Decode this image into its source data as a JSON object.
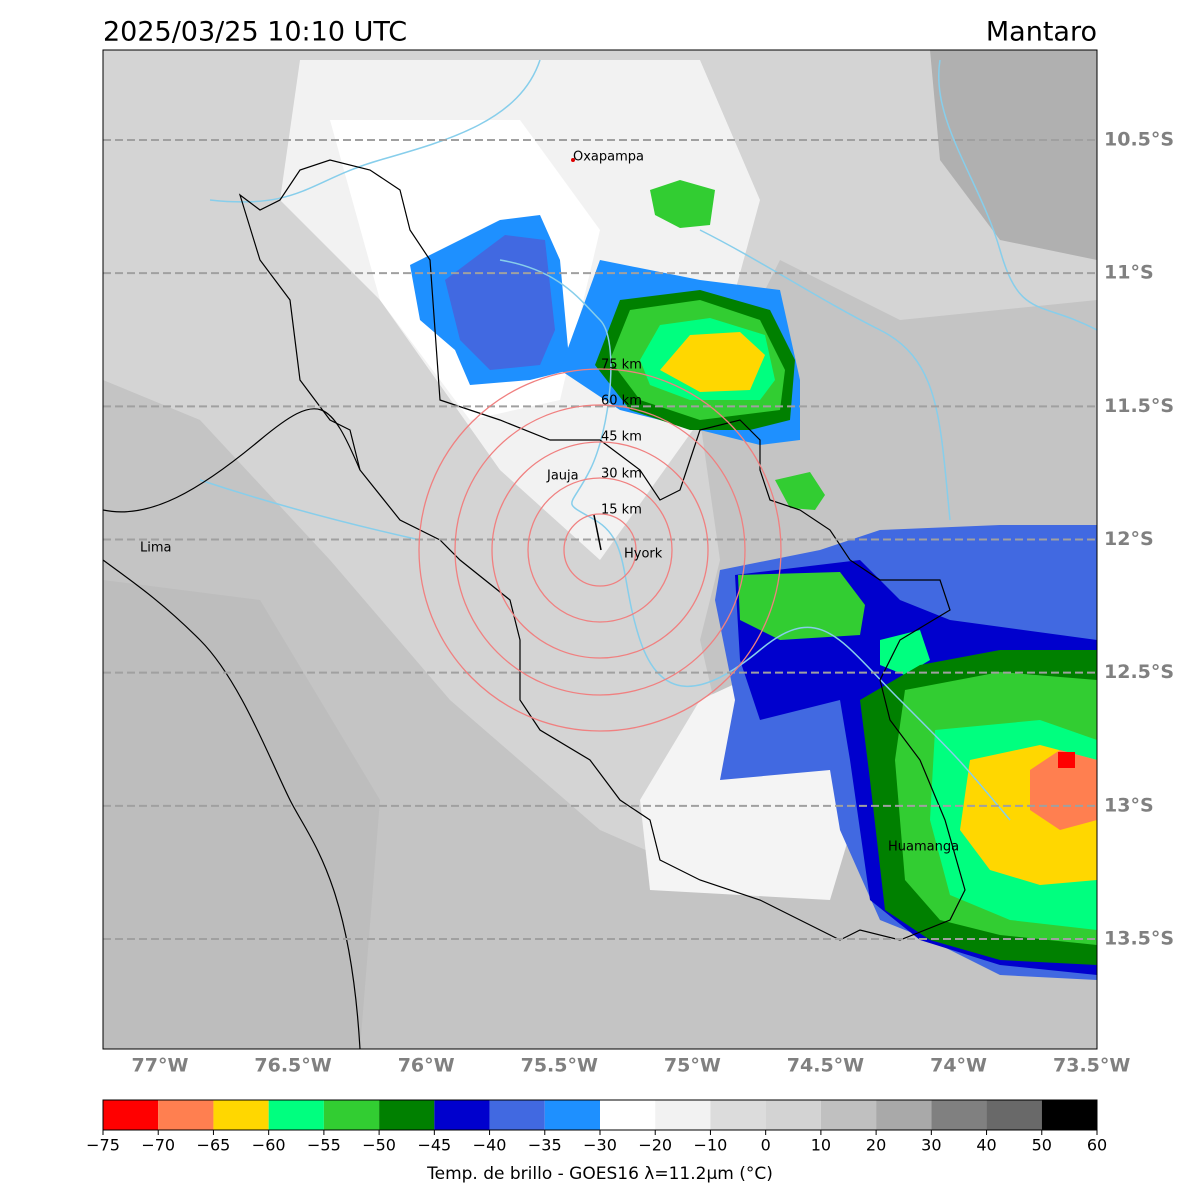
{
  "map": {
    "title": "2025/03/25 10:10 UTC",
    "region": "Mantaro",
    "lonlim": [
      -77.214,
      -73.48
    ],
    "latlim": [
      -10.162,
      -13.913
    ],
    "lat_ticks": [
      {
        "value": -10.5,
        "label": "10.5°S"
      },
      {
        "value": -11,
        "label": "11°S"
      },
      {
        "value": -11.5,
        "label": "11.5°S"
      },
      {
        "value": -12,
        "label": "12°S"
      },
      {
        "value": -12.5,
        "label": "12.5°S"
      },
      {
        "value": -13,
        "label": "13°S"
      },
      {
        "value": -13.5,
        "label": "13.5°S"
      }
    ],
    "lon_ticks": [
      {
        "value": -77,
        "label": "77°W"
      },
      {
        "value": -76.5,
        "label": "76.5°W"
      },
      {
        "value": -76,
        "label": "76°W"
      },
      {
        "value": -75.5,
        "label": "75.5°W"
      },
      {
        "value": -75,
        "label": "75°W"
      },
      {
        "value": -74.5,
        "label": "74.5°W"
      },
      {
        "value": -74,
        "label": "74°W"
      },
      {
        "value": -73.5,
        "label": "73.5°W"
      }
    ],
    "places": [
      "Oxapampa",
      "Jauja",
      "Hyork",
      "Lima",
      "Huamanga"
    ],
    "rings": [
      "15 km",
      "30 km",
      "45 km",
      "60 km",
      "75 km"
    ]
  },
  "colorbar": {
    "label": "Temp. de brillo - GOES16 λ=11.2μm (°C)",
    "ticks": [
      {
        "value": -75,
        "label": "−75"
      },
      {
        "value": -70,
        "label": "−70"
      },
      {
        "value": -65,
        "label": "−65"
      },
      {
        "value": -60,
        "label": "−60"
      },
      {
        "value": -55,
        "label": "−55"
      },
      {
        "value": -50,
        "label": "−50"
      },
      {
        "value": -45,
        "label": "−45"
      },
      {
        "value": -40,
        "label": "−40"
      },
      {
        "value": -35,
        "label": "−35"
      },
      {
        "value": -30,
        "label": "−30"
      },
      {
        "value": -20,
        "label": "−20"
      },
      {
        "value": -10,
        "label": "−10"
      },
      0,
      10,
      20,
      30,
      40,
      50,
      60
    ],
    "colors": [
      "#ff0000",
      "#ff7f50",
      "#ffd700",
      "#00ff7f",
      "#32cd32",
      "#008000",
      "#0000cd",
      "#4169e1",
      "#1e90ff",
      "#ffffff",
      "#f2f2f2",
      "#dcdcdc",
      "#d3d3d3",
      "#c0c0c0",
      "#a9a9a9",
      "#808080",
      "#696969",
      "#000000"
    ]
  }
}
